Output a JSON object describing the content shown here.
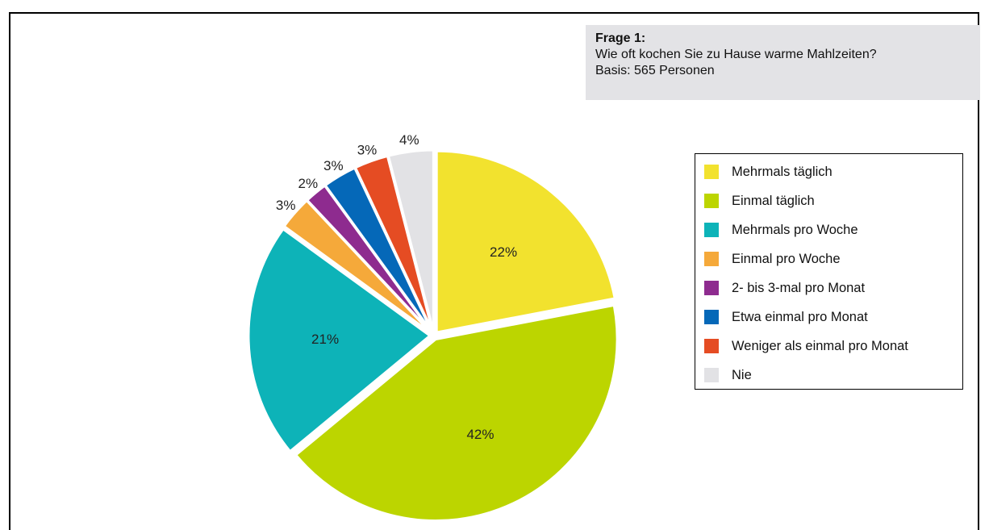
{
  "info": {
    "question": "Frage 1:",
    "text": "Wie oft kochen Sie zu Hause warme Mahlzeiten?",
    "basis": "Basis: 565 Personen"
  },
  "chart_data": {
    "type": "pie",
    "categories": [
      "Mehrmals täglich",
      "Einmal täglich",
      "Mehrmals pro Woche",
      "Einmal pro Woche",
      "2- bis 3-mal pro Monat",
      "Etwa einmal pro Monat",
      "Weniger als einmal pro Monat",
      "Nie"
    ],
    "values": [
      22,
      42,
      21,
      3,
      2,
      3,
      3,
      4
    ],
    "labels": [
      "22%",
      "42%",
      "21%",
      "3%",
      "2%",
      "3%",
      "3%",
      "4%"
    ],
    "colors": [
      "#f2e22e",
      "#bcd500",
      "#0db3b8",
      "#f5a93a",
      "#8e2b8f",
      "#0568b8",
      "#e54c23",
      "#e2e2e5"
    ],
    "legend_position": "right"
  }
}
